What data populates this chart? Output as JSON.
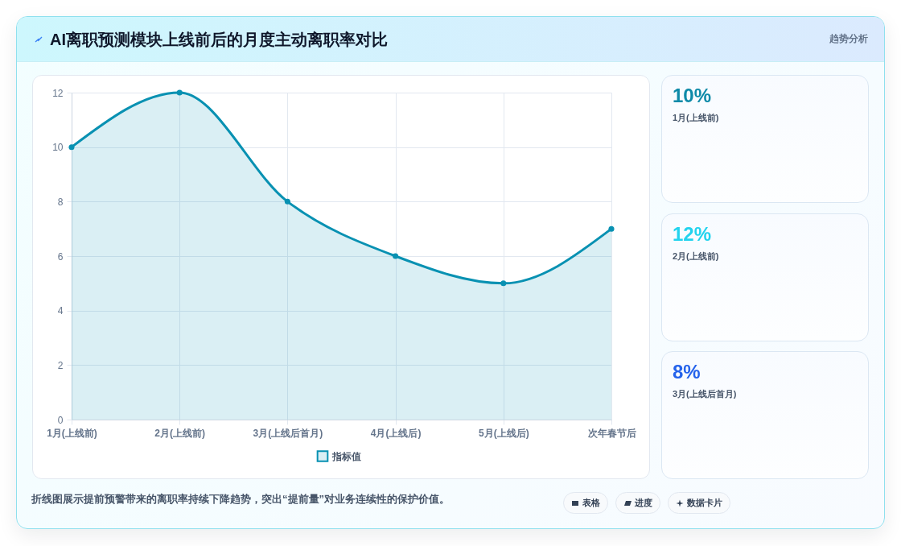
{
  "chart_data": [
    {
      "type": "area",
      "title": "AI离职预测模块上线前后的月度主动离职率对比",
      "categories": [
        "1月(上线前)",
        "2月(上线前)",
        "3月(上线后首月)",
        "4月(上线后)",
        "5月(上线后)",
        "次年春节后"
      ],
      "series": [
        {
          "name": "指标值",
          "color": "#0891b2",
          "values": [
            10,
            12,
            8,
            6,
            5,
            7
          ]
        }
      ],
      "ylim": [
        0,
        12
      ],
      "yticks": [
        0,
        2,
        4,
        6,
        8,
        10,
        12
      ],
      "grid": true,
      "legend": "bottom",
      "marker": "circle",
      "annotations": [
        "折线图展示提前预警带来的离职率持续下降趋势，突出“提前量”对业务连续性的保护价值。",
        "表格",
        "进度",
        "数据卡片"
      ]
    },
    {
      "type": "other",
      "title": "趋势分析",
      "annotations": [
        "10%",
        "1月(上线前)",
        "12%",
        "2月(上线前)",
        "8%",
        "3月(上线后首月)"
      ]
    }
  ]
}
